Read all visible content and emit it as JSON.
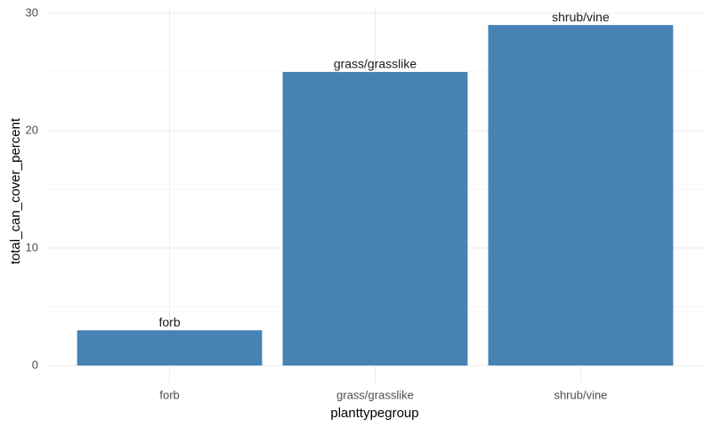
{
  "chart_data": {
    "type": "bar",
    "x_label": "planttypegroup",
    "y_label": "total_can_cover_percent",
    "categories": [
      "forb",
      "grass/grasslike",
      "shrub/vine"
    ],
    "values": [
      3,
      25,
      29
    ],
    "color": "#4682b4",
    "ylim": [
      -1.45,
      30.45
    ],
    "yticks": [
      0,
      10,
      20,
      30
    ],
    "y_minor_gridlines": [
      5,
      15,
      25
    ],
    "grid": true,
    "bar_labels": "category"
  }
}
